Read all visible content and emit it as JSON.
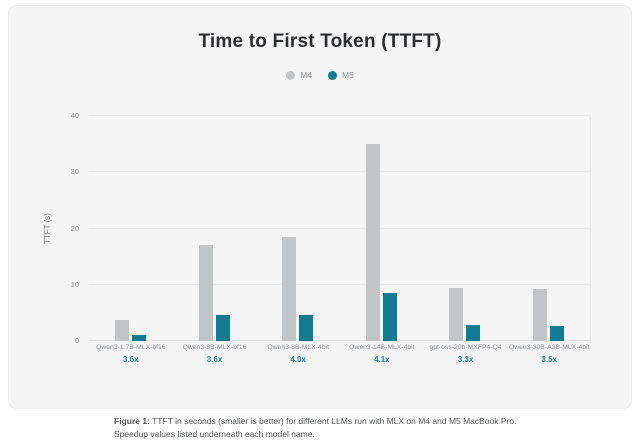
{
  "card": {
    "title": "Time to First Token (TTFT)"
  },
  "legend": {
    "items": [
      {
        "label": "M4",
        "color": "#c3c4c6"
      },
      {
        "label": "M5",
        "color": "#127c93"
      }
    ]
  },
  "chart_data": {
    "type": "bar",
    "title": "Time to First Token (TTFT)",
    "xlabel": "",
    "ylabel": "TTFT (s)",
    "ylim": [
      0,
      40
    ],
    "yticks": [
      0,
      10,
      20,
      30,
      40
    ],
    "grid": true,
    "legend_position": "top",
    "categories": [
      "Qwen3-1.7B-MLX-bf16",
      "Qwen3-8B-MLX-bf16",
      "Qwen3-8B-MLX-4bit",
      "Qwen3-14B-MLX-4bit",
      "gpt-oss-20b-MXFP4-Q4",
      "Qwen3-30B-A3B-MLX-4bit"
    ],
    "speedups": [
      "3.6x",
      "3.6x",
      "4.0x",
      "4.1x",
      "3.3x",
      "3.5x"
    ],
    "series": [
      {
        "name": "M4",
        "color": "#c3c4c6",
        "values": [
          3.7,
          17.0,
          18.5,
          35.0,
          9.5,
          9.3
        ]
      },
      {
        "name": "M5",
        "color": "#127c93",
        "values": [
          1.0,
          4.7,
          4.6,
          8.6,
          2.9,
          2.7
        ]
      }
    ]
  },
  "caption": {
    "prefix": "Figure 1:",
    "text": " TTFT in seconds (smaller is better) for different LLMs run with MLX on M4 and M5 MacBook Pro. Speedup values listed underneath each model name."
  }
}
